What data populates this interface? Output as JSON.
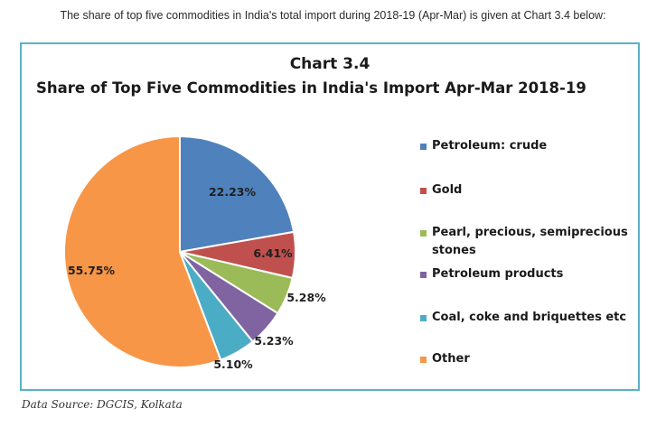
{
  "intro_text": "The share of top five commodities in India's total import during 2018-19 (Apr-Mar) is given at Chart 3.4 below:",
  "source_text": "Data Source: DGCIS, Kolkata",
  "chart_data": {
    "type": "pie",
    "chart_number": "Chart 3.4",
    "title": "Share of Top Five Commodities in India's Import Apr-Mar 2018-19",
    "unit": "%",
    "legend_position": "right",
    "start_angle_deg": 0,
    "direction": "clockwise",
    "slices": [
      {
        "name": "Petroleum: crude",
        "value": 22.23,
        "label": "22.23%",
        "color": "#4f81bd"
      },
      {
        "name": "Gold",
        "value": 6.41,
        "label": "6.41%",
        "color": "#c0504d"
      },
      {
        "name": "Pearl, precious, semiprecious stones",
        "value": 5.28,
        "label": "5.28%",
        "color": "#9bbb59"
      },
      {
        "name": "Petroleum products",
        "value": 5.23,
        "label": "5.23%",
        "color": "#8064a2"
      },
      {
        "name": "Coal, coke and briquettes etc",
        "value": 5.1,
        "label": "5.10%",
        "color": "#4bacc6"
      },
      {
        "name": "Other",
        "value": 55.75,
        "label": "55.75%",
        "color": "#f79646"
      }
    ]
  }
}
